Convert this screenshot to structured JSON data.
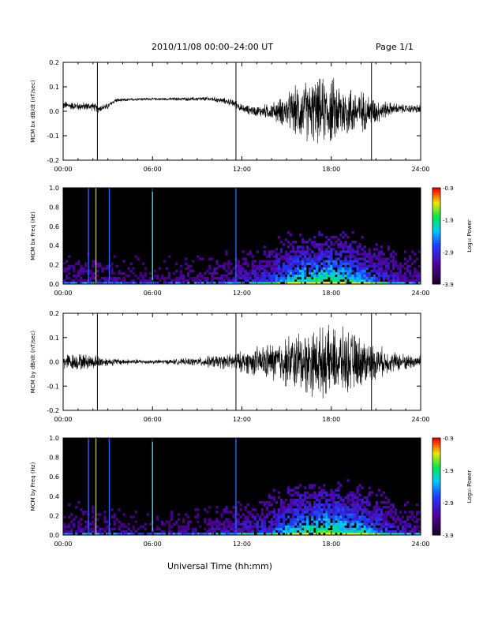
{
  "header": {
    "title": "2010/11/08  00:00–24:00 UT",
    "page": "Page 1/1"
  },
  "footer": {
    "xlabel": "Universal Time (hh:mm)"
  },
  "colorbar": {
    "label": "Log₁₀ Power",
    "ticks": [
      "-0.9",
      "-1.9",
      "-2.9",
      "-3.9"
    ],
    "range": [
      -3.9,
      -0.9
    ]
  },
  "colors": {
    "background_spectrogram": "#000000",
    "trace": "#000000",
    "axes": "#000000"
  },
  "chart_data": [
    {
      "type": "line",
      "title": "",
      "xlabel": "",
      "ylabel": "MCM bx dB/dt (nT/sec)",
      "x_ticks": [
        "00:00",
        "06:00",
        "12:00",
        "18:00",
        "24:00"
      ],
      "y_ticks": [
        "0.2",
        "0.1",
        "0.0",
        "-0.1",
        "-0.2"
      ],
      "xlim": [
        0,
        24
      ],
      "ylim": [
        -0.2,
        0.2
      ],
      "series": [
        {
          "x": [
            0,
            1,
            2,
            2.3,
            3,
            3.5,
            4,
            5,
            6,
            7,
            8,
            9,
            10,
            11,
            11.6,
            12,
            13,
            14,
            15,
            16,
            17,
            18,
            19,
            20,
            21,
            22,
            23,
            24
          ],
          "amplitude": [
            0.02,
            0.02,
            0.02,
            0.02,
            0.015,
            0.01,
            0.008,
            0.006,
            0.006,
            0.006,
            0.008,
            0.01,
            0.012,
            0.015,
            0.02,
            0.02,
            0.025,
            0.04,
            0.08,
            0.14,
            0.15,
            0.16,
            0.13,
            0.1,
            0.06,
            0.03,
            0.02,
            0.02
          ],
          "baseline": [
            0.025,
            0.02,
            0.02,
            0.01,
            0.02,
            0.045,
            0.045,
            0.05,
            0.05,
            0.05,
            0.05,
            0.05,
            0.05,
            0.04,
            0.03,
            0.01,
            0.0,
            0.0,
            0.0,
            0.0,
            0.0,
            0.0,
            0.0,
            0.0,
            0.0,
            0.01,
            0.01,
            0.01
          ]
        }
      ],
      "spikes_hours": [
        2.3,
        11.6,
        20.7
      ],
      "grid": false
    },
    {
      "type": "heatmap",
      "title": "",
      "xlabel": "",
      "ylabel": "MCM bx Freq (Hz)",
      "x_ticks": [
        "00:00",
        "06:00",
        "12:00",
        "18:00",
        "24:00"
      ],
      "y_ticks": [
        "1.0",
        "0.8",
        "0.6",
        "0.4",
        "0.2",
        "0.0"
      ],
      "xlim": [
        0,
        24
      ],
      "ylim": [
        0,
        1.0
      ],
      "activity_profile": {
        "hours": [
          0,
          2,
          4,
          6,
          8,
          10,
          12,
          13,
          14,
          15,
          16,
          17,
          18,
          19,
          20,
          21,
          22,
          23,
          24
        ],
        "relative_power": [
          0.25,
          0.25,
          0.2,
          0.15,
          0.2,
          0.25,
          0.35,
          0.4,
          0.5,
          0.75,
          0.9,
          0.95,
          1.0,
          0.9,
          0.75,
          0.55,
          0.4,
          0.3,
          0.3
        ]
      },
      "vertical_lines_hours": [
        1.7,
        2.2,
        3.1,
        6.0,
        11.6
      ]
    },
    {
      "type": "line",
      "title": "",
      "xlabel": "",
      "ylabel": "MCM by dB/dt (nT/sec)",
      "x_ticks": [
        "00:00",
        "06:00",
        "12:00",
        "18:00",
        "24:00"
      ],
      "y_ticks": [
        "0.2",
        "0.1",
        "0.0",
        "-0.1",
        "-0.2"
      ],
      "xlim": [
        0,
        24
      ],
      "ylim": [
        -0.2,
        0.2
      ],
      "series": [
        {
          "x": [
            0,
            1,
            2,
            3,
            4,
            5,
            6,
            7,
            8,
            9,
            10,
            11,
            12,
            13,
            14,
            15,
            16,
            17,
            18,
            19,
            20,
            21,
            22,
            23,
            24
          ],
          "amplitude": [
            0.04,
            0.04,
            0.035,
            0.02,
            0.015,
            0.012,
            0.01,
            0.012,
            0.015,
            0.02,
            0.03,
            0.035,
            0.05,
            0.07,
            0.09,
            0.12,
            0.15,
            0.16,
            0.16,
            0.15,
            0.12,
            0.08,
            0.05,
            0.04,
            0.03
          ],
          "baseline": [
            0.0,
            0.0,
            0.0,
            0.0,
            0.0,
            0.0,
            0.0,
            0.0,
            0.0,
            0.0,
            0.0,
            0.0,
            0.0,
            0.0,
            0.0,
            0.0,
            0.0,
            0.0,
            0.0,
            0.0,
            0.0,
            0.0,
            0.0,
            0.0,
            0.0
          ]
        }
      ],
      "spikes_hours": [
        2.3,
        11.6,
        20.7
      ],
      "grid": false
    },
    {
      "type": "heatmap",
      "title": "",
      "xlabel": "",
      "ylabel": "MCM by Freq (Hz)",
      "x_ticks": [
        "00:00",
        "06:00",
        "12:00",
        "18:00",
        "24:00"
      ],
      "y_ticks": [
        "1.0",
        "0.8",
        "0.6",
        "0.4",
        "0.2",
        "0.0"
      ],
      "xlim": [
        0,
        24
      ],
      "ylim": [
        0,
        1.0
      ],
      "activity_profile": {
        "hours": [
          0,
          2,
          4,
          6,
          8,
          10,
          12,
          13,
          14,
          15,
          16,
          17,
          18,
          19,
          20,
          21,
          22,
          23,
          24
        ],
        "relative_power": [
          0.25,
          0.25,
          0.2,
          0.15,
          0.2,
          0.25,
          0.35,
          0.4,
          0.5,
          0.75,
          0.9,
          0.95,
          1.0,
          0.9,
          0.8,
          0.6,
          0.45,
          0.35,
          0.3
        ]
      },
      "vertical_lines_hours": [
        1.7,
        2.2,
        3.1,
        6.0,
        11.6
      ]
    }
  ]
}
